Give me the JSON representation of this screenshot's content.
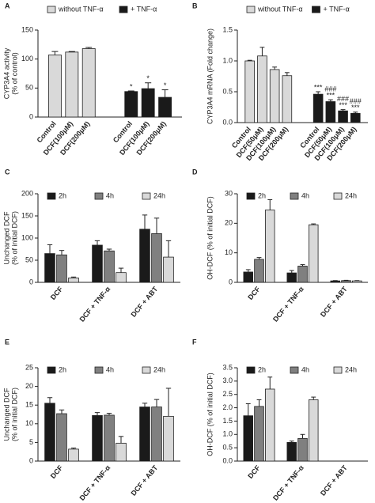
{
  "chart_data": [
    {
      "type": "bar",
      "panel": "A",
      "ylabel": [
        "CYP3A4 activity",
        "(% of control)"
      ],
      "categories": [
        "Control",
        "DCF(100μM)",
        "DCF(200μM)",
        "Control",
        "DCF(100μM)",
        "DCF(200μM)"
      ],
      "series": [
        {
          "name": "without TNF-α",
          "color": "#d9d9d9",
          "values": [
            107,
            112,
            118,
            null,
            null,
            null
          ],
          "errors": [
            6,
            1,
            2,
            null,
            null,
            null
          ],
          "annotations": [
            null,
            null,
            null,
            null,
            null,
            null
          ]
        },
        {
          "name": "+ TNF-α",
          "color": "#1a1a1a",
          "values": [
            null,
            null,
            null,
            44,
            49,
            34
          ],
          "errors": [
            null,
            null,
            null,
            1,
            10,
            13
          ],
          "annotations": [
            null,
            null,
            null,
            [
              "*"
            ],
            [
              "*"
            ],
            [
              "*"
            ]
          ]
        }
      ],
      "ylim": [
        0,
        150
      ],
      "yticks": [
        0,
        50,
        100,
        150
      ]
    },
    {
      "type": "bar",
      "panel": "B",
      "ylabel": [
        "CYP3A4 mRNA (Fold change)"
      ],
      "categories": [
        "Control",
        "DCF(50μM)",
        "DCF(100μM)",
        "DCF(200μM)",
        "Control",
        "DCF(50μM)",
        "DCF(100μM)",
        "DCF(200μM)"
      ],
      "series": [
        {
          "name": "without TNF-α",
          "color": "#d9d9d9",
          "values": [
            1.0,
            1.08,
            0.86,
            0.76,
            null,
            null,
            null,
            null
          ],
          "errors": [
            0.01,
            0.14,
            0.04,
            0.05,
            null,
            null,
            null,
            null
          ],
          "annotations": [
            null,
            null,
            null,
            null,
            null,
            null,
            null,
            null
          ]
        },
        {
          "name": "+ TNF-α",
          "color": "#1a1a1a",
          "values": [
            null,
            null,
            null,
            null,
            0.46,
            0.34,
            0.19,
            0.15
          ],
          "errors": [
            null,
            null,
            null,
            null,
            0.04,
            0.03,
            0.02,
            0.02
          ],
          "annotations": [
            null,
            null,
            null,
            null,
            [
              "***"
            ],
            [
              "###",
              "***"
            ],
            [
              "###",
              "***"
            ],
            [
              "###",
              "***"
            ]
          ]
        }
      ],
      "ylim": [
        0,
        1.5
      ],
      "yticks": [
        {
          "value": 0,
          "label": "0.0"
        },
        {
          "value": 0.5,
          "label": "0.5"
        },
        {
          "value": 1,
          "label": "1.0"
        },
        {
          "value": 1.5,
          "label": "1.5"
        }
      ]
    },
    {
      "type": "bar",
      "panel": "C",
      "ylabel": [
        "Unchanged DCF",
        "(% of initial DCF)"
      ],
      "categories": [
        "DCF",
        "DCF + TNF-α",
        "DCF + ABT"
      ],
      "series": [
        {
          "name": "2h",
          "color": "#1a1a1a",
          "values": [
            65,
            84,
            120
          ],
          "errors": [
            20,
            10,
            32
          ]
        },
        {
          "name": "4h",
          "color": "#808080",
          "values": [
            62,
            71,
            110
          ],
          "errors": [
            10,
            4,
            35
          ]
        },
        {
          "name": "24h",
          "color": "#d9d9d9",
          "values": [
            10,
            22,
            57
          ],
          "errors": [
            2,
            10,
            37
          ]
        }
      ],
      "ylim": [
        0,
        200
      ],
      "yticks": [
        0,
        50,
        100,
        150,
        200
      ]
    },
    {
      "type": "bar",
      "panel": "D",
      "ylabel": [
        "OH-DCF (% of initial DCF)"
      ],
      "categories": [
        "DCF",
        "DCF + TNF-α",
        "DCF + ABT"
      ],
      "series": [
        {
          "name": "2h",
          "color": "#1a1a1a",
          "values": [
            3.5,
            3.2,
            0.5
          ],
          "errors": [
            0.8,
            0.8,
            0.1
          ]
        },
        {
          "name": "4h",
          "color": "#808080",
          "values": [
            7.8,
            5.5,
            0.6
          ],
          "errors": [
            0.6,
            0.5,
            0.1
          ]
        },
        {
          "name": "24h",
          "color": "#d9d9d9",
          "values": [
            24.5,
            19.5,
            0.5
          ],
          "errors": [
            3.5,
            0.3,
            0.1
          ]
        }
      ],
      "ylim": [
        0,
        30
      ],
      "yticks": [
        0,
        10,
        20,
        30
      ]
    },
    {
      "type": "bar",
      "panel": "E",
      "ylabel": [
        "Unchanged DCF",
        "(% of initial DCF)"
      ],
      "categories": [
        "DCF",
        "DCF + TNF-α",
        "DCF + ABT"
      ],
      "series": [
        {
          "name": "2h",
          "color": "#1a1a1a",
          "values": [
            15.5,
            12.2,
            14.5
          ],
          "errors": [
            1.5,
            0.8,
            1
          ]
        },
        {
          "name": "4h",
          "color": "#808080",
          "values": [
            12.7,
            12.3,
            14.5
          ],
          "errors": [
            1,
            0.5,
            2
          ]
        },
        {
          "name": "24h",
          "color": "#d9d9d9",
          "values": [
            3.2,
            4.8,
            12
          ],
          "errors": [
            0.3,
            1.8,
            7.5
          ]
        }
      ],
      "ylim": [
        0,
        25
      ],
      "yticks": [
        0,
        5,
        10,
        15,
        20,
        25
      ]
    },
    {
      "type": "bar",
      "panel": "F",
      "ylabel": [
        "OH-DCF (% of initial DCF)"
      ],
      "categories": [
        "DCF",
        "DCF + TNF-α",
        "DCF + ABT"
      ],
      "series": [
        {
          "name": "2h",
          "color": "#1a1a1a",
          "values": [
            1.7,
            0.7,
            0
          ],
          "errors": [
            0.45,
            0.05,
            0
          ]
        },
        {
          "name": "4h",
          "color": "#808080",
          "values": [
            2.05,
            0.85,
            0
          ],
          "errors": [
            0.25,
            0.15,
            0
          ]
        },
        {
          "name": "24h",
          "color": "#d9d9d9",
          "values": [
            2.7,
            2.3,
            0
          ],
          "errors": [
            0.45,
            0.1,
            0
          ]
        }
      ],
      "ylim": [
        0,
        3.5
      ],
      "yticks": [
        {
          "value": 0,
          "label": "0.0"
        },
        {
          "value": 0.5,
          "label": "0.5"
        },
        {
          "value": 1,
          "label": "1.0"
        },
        {
          "value": 1.5,
          "label": "1.5"
        },
        {
          "value": 2,
          "label": "2.0"
        },
        {
          "value": 2.5,
          "label": "2.5"
        },
        {
          "value": 3,
          "label": "3.0"
        },
        {
          "value": 3.5,
          "label": "3.5"
        }
      ]
    }
  ]
}
